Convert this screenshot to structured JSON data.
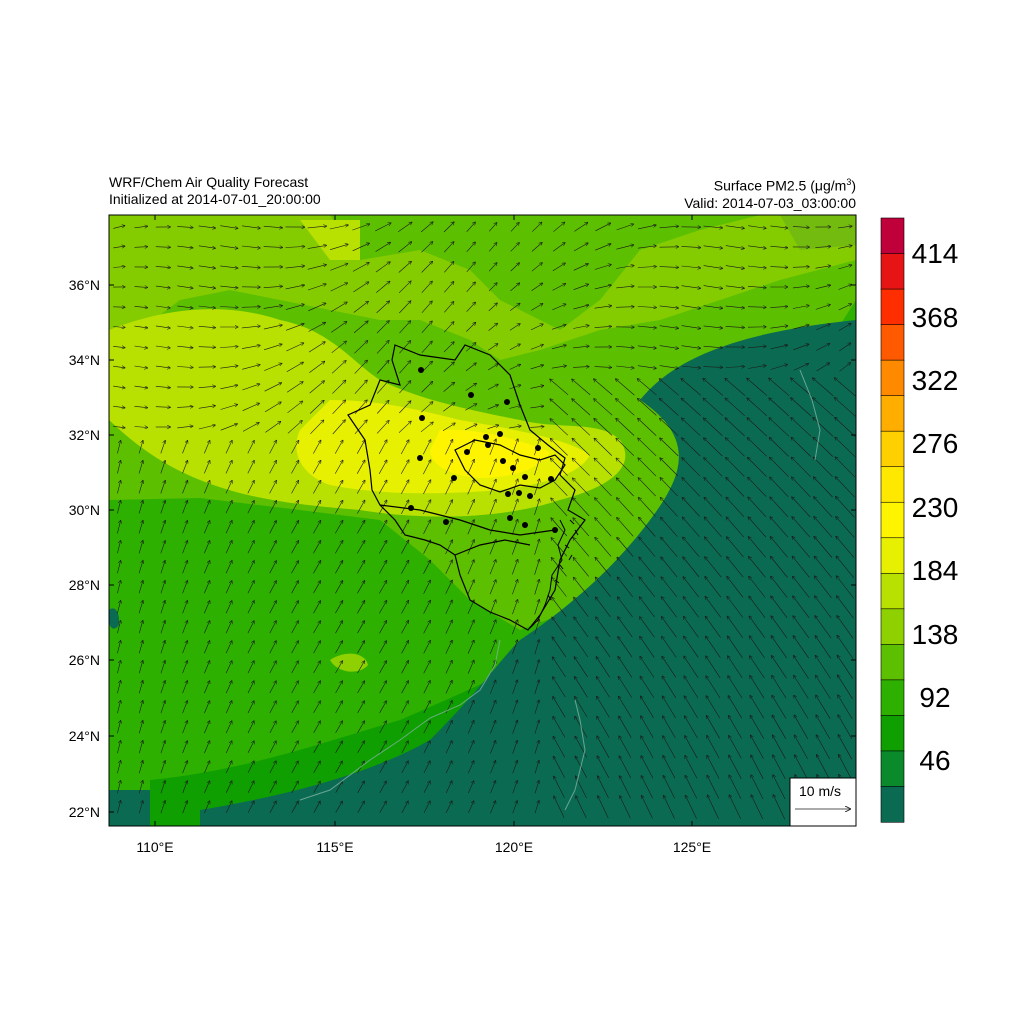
{
  "header": {
    "left_title": "WRF/Chem Air Quality Forecast",
    "left_subtitle": "Initialized at 2014-07-01_20:00:00",
    "right_title_prefix": "Surface PM2.5 (",
    "right_title_unit_mu": "μ",
    "right_title_unit_rest": "g/m",
    "right_title_unit_sup": "3",
    "right_title_suffix": ")",
    "right_subtitle": "Valid: 2014-07-03_03:00:00"
  },
  "axes": {
    "lat_labels": [
      "36°N",
      "34°N",
      "32°N",
      "30°N",
      "28°N",
      "26°N",
      "24°N",
      "22°N"
    ],
    "lon_labels": [
      "110°E",
      "115°E",
      "120°E",
      "125°E"
    ]
  },
  "colorbar": {
    "labels": [
      "414",
      "368",
      "322",
      "276",
      "230",
      "184",
      "138",
      "92",
      "46"
    ],
    "colors": [
      "#c0003b",
      "#e61414",
      "#ff2e00",
      "#ff5a00",
      "#ff8a00",
      "#ffae00",
      "#ffd000",
      "#ffe800",
      "#fff400",
      "#e6f000",
      "#b8e000",
      "#8ed000",
      "#5cbf00",
      "#2eb000",
      "#0f9f00",
      "#0a8a2a",
      "#0b6b52"
    ]
  },
  "wind_reference": {
    "label": "10 m/s"
  },
  "palette": {
    "deep_sea": "#0b6b52",
    "green_dark": "#0f9f00",
    "green": "#2eb000",
    "green_light": "#5cbf00",
    "yellow_green": "#b8e000",
    "yellow": "#e6f000",
    "bright_yellow": "#fff400"
  }
}
